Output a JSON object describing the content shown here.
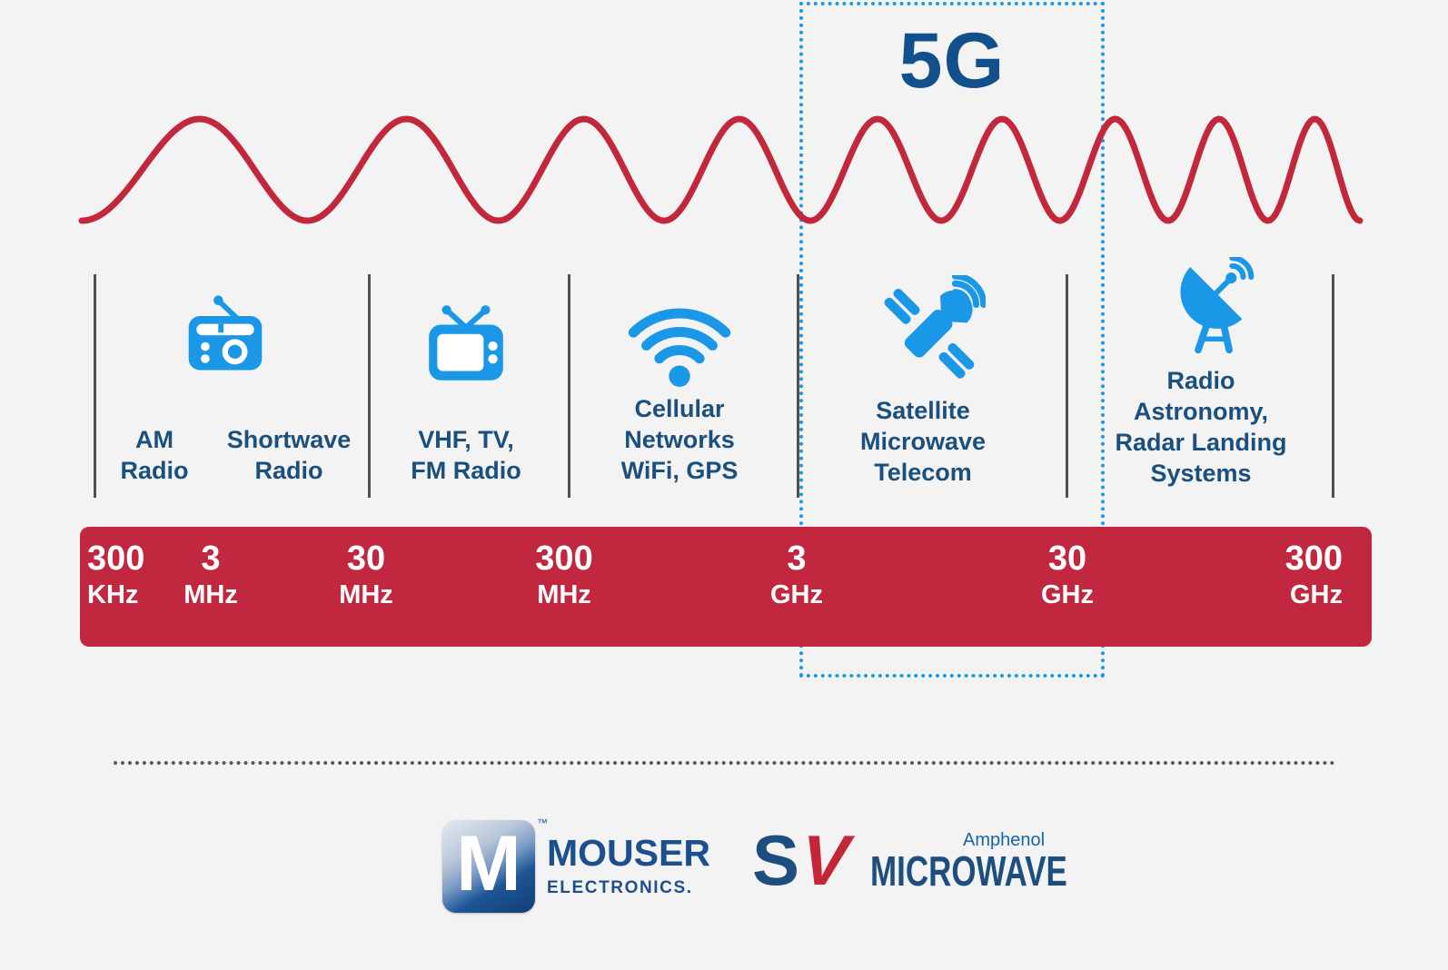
{
  "header": {
    "band_label": "5G"
  },
  "sections": [
    {
      "name": "am-shortwave-radio",
      "icon": "radio-icon",
      "labels": [
        {
          "lines": [
            "AM",
            "Radio"
          ]
        },
        {
          "lines": [
            "Shortwave",
            "Radio"
          ]
        }
      ]
    },
    {
      "name": "vhf-tv-fm-radio",
      "icon": "tv-icon",
      "labels": [
        {
          "lines": [
            "VHF, TV,",
            "FM Radio"
          ]
        }
      ]
    },
    {
      "name": "cellular-networks-wifi-gps",
      "icon": "wifi-icon",
      "labels": [
        {
          "lines": [
            "Cellular",
            "Networks",
            "WiFi, GPS"
          ]
        }
      ]
    },
    {
      "name": "satellite-microwave-telecom",
      "icon": "satellite-icon",
      "labels": [
        {
          "lines": [
            "Satellite",
            "Microwave",
            "Telecom"
          ]
        }
      ]
    },
    {
      "name": "radio-astronomy-radar",
      "icon": "radio-telescope-icon",
      "labels": [
        {
          "lines": [
            "Radio",
            "Astronomy,",
            "Radar Landing",
            "Systems"
          ]
        }
      ]
    }
  ],
  "scale": [
    {
      "value": "300",
      "unit": "KHz"
    },
    {
      "value": "3",
      "unit": "MHz"
    },
    {
      "value": "30",
      "unit": "MHz"
    },
    {
      "value": "300",
      "unit": "MHz"
    },
    {
      "value": "3",
      "unit": "GHz"
    },
    {
      "value": "30",
      "unit": "GHz"
    },
    {
      "value": "300",
      "unit": "GHz"
    }
  ],
  "footer": {
    "mouser": {
      "monogram": "M",
      "trademark": "™",
      "name": "MOUSER",
      "tagline": "ELECTRONICS."
    },
    "sv_microwave": {
      "monogram_s": "S",
      "monogram_v": "V",
      "name": "MICROWAVE",
      "parent_brand": "Amphenol"
    }
  },
  "colors": {
    "background": "#f2f3f2",
    "wave_red": "#c2273c",
    "bar_red": "#c22740",
    "icon_blue": "#1b97e8",
    "heading_blue": "#11508c",
    "label_blue": "#1b4f7e",
    "dotted_box_blue": "#2199e2",
    "divider_gray": "#505054",
    "logo_navy": "#1d4e7f",
    "logo_red": "#c52637",
    "amphenol_blue": "#1566a8"
  }
}
